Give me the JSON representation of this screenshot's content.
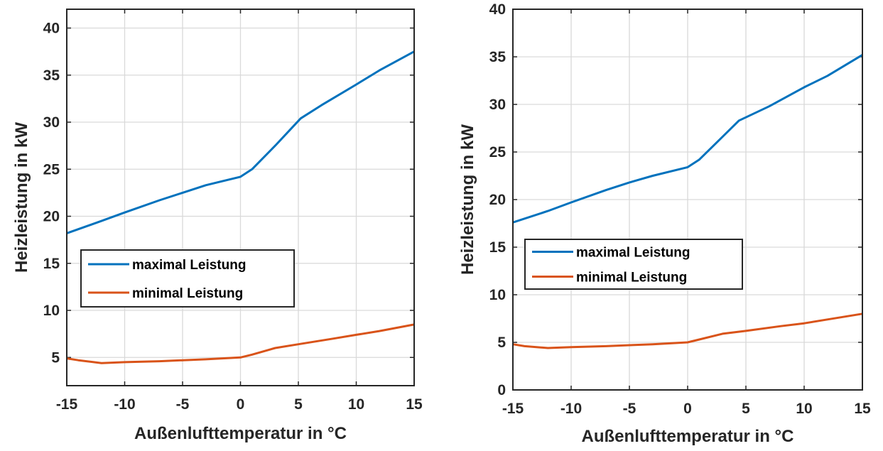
{
  "chart_data": [
    {
      "type": "line",
      "xlabel": "Außenlufttemperatur in °C",
      "ylabel": "Heizleistung in kW",
      "xlim": [
        -15,
        15
      ],
      "ylim": [
        2,
        42
      ],
      "xticks": [
        -15,
        -10,
        -5,
        0,
        5,
        10,
        15
      ],
      "yticks": [
        5,
        10,
        15,
        20,
        25,
        30,
        35,
        40
      ],
      "grid": true,
      "legend_position": "center-left",
      "series": [
        {
          "name": "maximal Leistung",
          "color": "#0072BD",
          "x": [
            -15,
            -12,
            -10,
            -7,
            -5,
            -3,
            0,
            1,
            3,
            5.2,
            7,
            10,
            12,
            15
          ],
          "y": [
            18.2,
            19.5,
            20.4,
            21.7,
            22.5,
            23.3,
            24.2,
            25,
            27.5,
            30.4,
            31.8,
            34,
            35.5,
            37.5
          ]
        },
        {
          "name": "minimal Leistung",
          "color": "#D95319",
          "x": [
            -15,
            -14,
            -12,
            -10,
            -7,
            -5,
            -3,
            0,
            1,
            3,
            5,
            8,
            10,
            12,
            15
          ],
          "y": [
            4.9,
            4.7,
            4.4,
            4.5,
            4.6,
            4.7,
            4.8,
            5.0,
            5.3,
            6.0,
            6.4,
            7.0,
            7.4,
            7.8,
            8.5
          ]
        }
      ]
    },
    {
      "type": "line",
      "xlabel": "Außenlufttemperatur in °C",
      "ylabel": "Heizleistung in kW",
      "xlim": [
        -15,
        15
      ],
      "ylim": [
        0,
        40
      ],
      "xticks": [
        -15,
        -10,
        -5,
        0,
        5,
        10,
        15
      ],
      "yticks": [
        0,
        5,
        10,
        15,
        20,
        25,
        30,
        35,
        40
      ],
      "grid": true,
      "legend_position": "center-left",
      "series": [
        {
          "name": "maximal Leistung",
          "color": "#0072BD",
          "x": [
            -15,
            -12,
            -10,
            -7,
            -5,
            -3,
            0,
            1,
            2.5,
            4.4,
            7,
            10,
            12,
            15
          ],
          "y": [
            17.6,
            18.8,
            19.7,
            21,
            21.8,
            22.5,
            23.4,
            24.2,
            26,
            28.3,
            29.8,
            31.8,
            33,
            35.2
          ]
        },
        {
          "name": "minimal Leistung",
          "color": "#D95319",
          "x": [
            -15,
            -14,
            -12,
            -10,
            -7,
            -5,
            -3,
            0,
            1,
            3,
            5,
            8,
            10,
            12,
            15
          ],
          "y": [
            4.8,
            4.6,
            4.4,
            4.5,
            4.6,
            4.7,
            4.8,
            5.0,
            5.3,
            5.9,
            6.2,
            6.7,
            7.0,
            7.4,
            8.0
          ]
        }
      ]
    }
  ]
}
